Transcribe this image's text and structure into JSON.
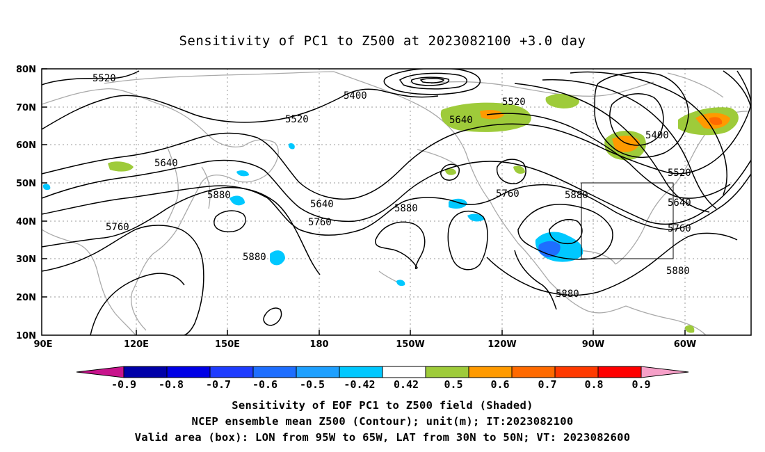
{
  "title": "Sensitivity of PC1 to Z500 at 2023082100 +3.0 day",
  "map": {
    "lat_labels": [
      "80N",
      "70N",
      "60N",
      "50N",
      "40N",
      "30N",
      "20N",
      "10N"
    ],
    "lon_labels": [
      "90E",
      "120E",
      "150E",
      "180",
      "150W",
      "120W",
      "90W",
      "60W"
    ],
    "contour_labels": [
      {
        "text": "5520",
        "id": "c5520-a"
      },
      {
        "text": "5400",
        "id": "c5400-a"
      },
      {
        "text": "5520",
        "id": "c5520-b"
      },
      {
        "text": "5520",
        "id": "c5520-c"
      },
      {
        "text": "5640",
        "id": "c5640-a"
      },
      {
        "text": "5640",
        "id": "c5640-b"
      },
      {
        "text": "5400",
        "id": "c5400-b"
      },
      {
        "text": "5520",
        "id": "c5520-d"
      },
      {
        "text": "5640",
        "id": "c5640-c"
      },
      {
        "text": "5880",
        "id": "c5880-a"
      },
      {
        "text": "5880",
        "id": "c5880-b"
      },
      {
        "text": "5760",
        "id": "c5760-a"
      },
      {
        "text": "5640",
        "id": "c5640-d"
      },
      {
        "text": "5760",
        "id": "c5760-b"
      },
      {
        "text": "5880",
        "id": "c5880-c"
      },
      {
        "text": "5760",
        "id": "c5760-c"
      },
      {
        "text": "5880",
        "id": "c5880-d"
      },
      {
        "text": "5760",
        "id": "c5760-d"
      },
      {
        "text": "5880",
        "id": "c5880-e"
      },
      {
        "text": "5880",
        "id": "c5880-f"
      }
    ],
    "valid_box": {
      "lon_from": "95W",
      "lon_to": "65W",
      "lat_from": "30N",
      "lat_to": "50N"
    }
  },
  "colorbar": {
    "labels": [
      "-0.9",
      "-0.8",
      "-0.7",
      "-0.6",
      "-0.5",
      "-0.42",
      "0.42",
      "0.5",
      "0.6",
      "0.7",
      "0.8",
      "0.9"
    ],
    "colors": {
      "lower_arrow": "#c8138c",
      "bins": [
        "#0000a8",
        "#0000e6",
        "#1e3cff",
        "#1e6eff",
        "#1ea0ff",
        "#00c8ff",
        "#ffffff",
        "#9ecb3a",
        "#ff9a00",
        "#ff6a00",
        "#ff3a00",
        "#ff0000"
      ],
      "upper_arrow": "#f6a0c8"
    }
  },
  "footer": {
    "line1": "Sensitivity of EOF PC1 to Z500 field (Shaded)",
    "line2": "NCEP ensemble mean Z500 (Contour); unit(m); IT:2023082100",
    "line3": "Valid area (box): LON from 95W to 65W, LAT from 30N to 50N; VT: 2023082600"
  }
}
